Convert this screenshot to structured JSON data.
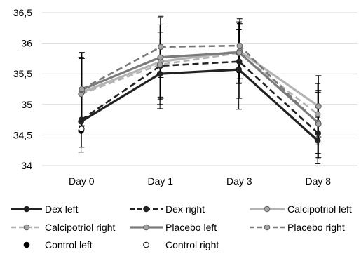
{
  "chart_data": {
    "type": "line",
    "title": "",
    "xlabel": "",
    "ylabel": "",
    "categories": [
      "Day 0",
      "Day 1",
      "Day 3",
      "Day 8"
    ],
    "ylim": [
      34,
      36.5
    ],
    "yticks": [
      "34",
      "34,5",
      "35",
      "35,5",
      "36",
      "36,5"
    ],
    "grid": "horizontal",
    "legend_position": "bottom",
    "series": [
      {
        "name": "Dex left",
        "values": [
          34.72,
          35.5,
          35.57,
          34.41
        ],
        "err": [
          0.5,
          0.57,
          0.65,
          0.38
        ],
        "color": "#222222",
        "dash": "solid",
        "marker": "filled",
        "width": 3.2
      },
      {
        "name": "Dex right",
        "values": [
          34.75,
          35.63,
          35.7,
          34.53
        ],
        "err": [
          0.45,
          0.55,
          0.6,
          0.42
        ],
        "color": "#222222",
        "dash": "dashed",
        "marker": "filled",
        "width": 2.6
      },
      {
        "name": "Calcipotriol left",
        "values": [
          35.2,
          35.7,
          35.87,
          34.97
        ],
        "err": [
          0.55,
          0.6,
          0.45,
          0.5
        ],
        "color": "#b3b3b3",
        "dash": "solid",
        "marker": "gray",
        "width": 3.2
      },
      {
        "name": "Calcipotriol right",
        "values": [
          35.17,
          35.65,
          35.84,
          34.84
        ],
        "err": [
          0.6,
          0.65,
          0.5,
          0.5
        ],
        "color": "#b3b3b3",
        "dash": "dashed",
        "marker": "gray",
        "width": 2.6
      },
      {
        "name": "Placebo left",
        "values": [
          35.24,
          35.77,
          35.85,
          34.7
        ],
        "err": [
          0.6,
          0.65,
          0.5,
          0.5
        ],
        "color": "#7a7a7a",
        "dash": "solid",
        "marker": "gray",
        "width": 3.2
      },
      {
        "name": "Placebo right",
        "values": [
          35.25,
          35.94,
          35.96,
          34.68
        ],
        "err": [
          0.6,
          0.5,
          0.44,
          0.55
        ],
        "color": "#7a7a7a",
        "dash": "dashed",
        "marker": "gray",
        "width": 2.6
      },
      {
        "name": "Control left",
        "values": [
          34.57,
          null,
          null,
          null
        ],
        "err": [
          0.0,
          null,
          null,
          null
        ],
        "color": "#000000",
        "dash": "none",
        "marker": "black",
        "width": 0
      },
      {
        "name": "Control right",
        "values": [
          34.6,
          null,
          null,
          null
        ],
        "err": [
          0.0,
          null,
          null,
          null
        ],
        "color": "#000000",
        "dash": "none",
        "marker": "white",
        "width": 0
      }
    ]
  }
}
